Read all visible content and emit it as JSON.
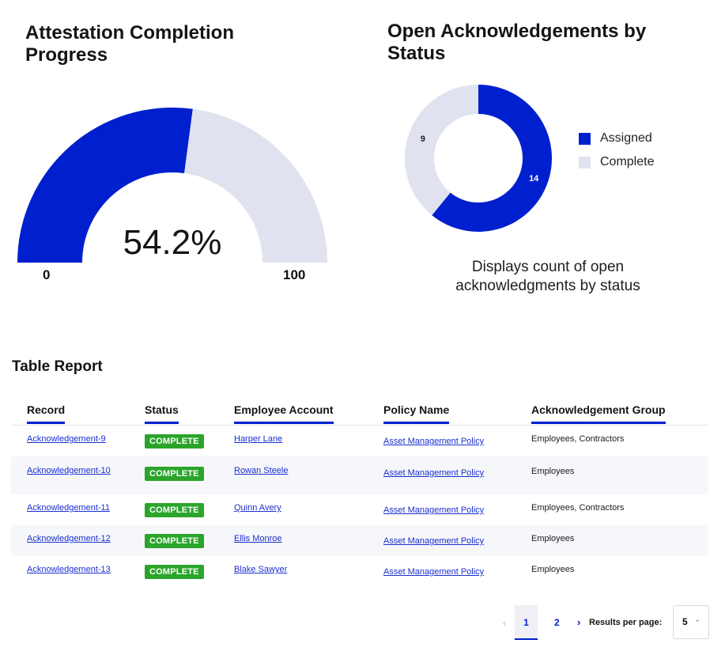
{
  "gauge": {
    "title": "Attestation Completion Progress",
    "value_label": "54.2%",
    "value": 54.2,
    "min_label": "0",
    "max_label": "100",
    "fill_color": "#0020CF",
    "track_color": "#E1E2EF"
  },
  "donut": {
    "title": "Open Acknowledgements by Status",
    "caption": "Displays count of open acknowledgments by status",
    "legend": [
      {
        "label": "Assigned",
        "color": "#0020CF"
      },
      {
        "label": "Complete",
        "color": "#E1E2EF"
      }
    ]
  },
  "chart_data": {
    "type": "pie",
    "categories": [
      "Assigned",
      "Complete"
    ],
    "values": [
      14,
      9
    ],
    "labels": [
      "14",
      "9"
    ],
    "colors": [
      "#0020CF",
      "#E1E2EF"
    ],
    "legend": "right"
  },
  "table": {
    "title": "Table Report",
    "columns": [
      "Record",
      "Status",
      "Employee Account",
      "Policy Name",
      "Acknowledgement Group"
    ],
    "rows": [
      {
        "record": "Acknowledgement-9",
        "status": "COMPLETE",
        "employee": "Harper Lane",
        "policy": "Asset Management Policy",
        "group": "Employees, Contractors"
      },
      {
        "record": "Acknowledgement-10",
        "status": "COMPLETE",
        "employee": "Rowan Steele",
        "policy": "Asset Management Policy",
        "group": "Employees"
      },
      {
        "record": "Acknowledgement-11",
        "status": "COMPLETE",
        "employee": "Quinn Avery",
        "policy": "Asset Management Policy",
        "group": "Employees, Contractors"
      },
      {
        "record": "Acknowledgement-12",
        "status": "COMPLETE",
        "employee": "Ellis Monroe",
        "policy": "Asset Management Policy",
        "group": "Employees"
      },
      {
        "record": "Acknowledgement-13",
        "status": "COMPLETE",
        "employee": "Blake Sawyer",
        "policy": "Asset Management Policy",
        "group": "Employees"
      }
    ],
    "status_color": "#2AA52A"
  },
  "pagination": {
    "prev_icon": "chevron-left-icon",
    "pages": [
      "1",
      "2"
    ],
    "current_page": "1",
    "next_icon": "chevron-right-icon",
    "per_page_label": "Results per page:",
    "per_page_value": "5",
    "dropdown_icon": "chevron-down-icon"
  }
}
